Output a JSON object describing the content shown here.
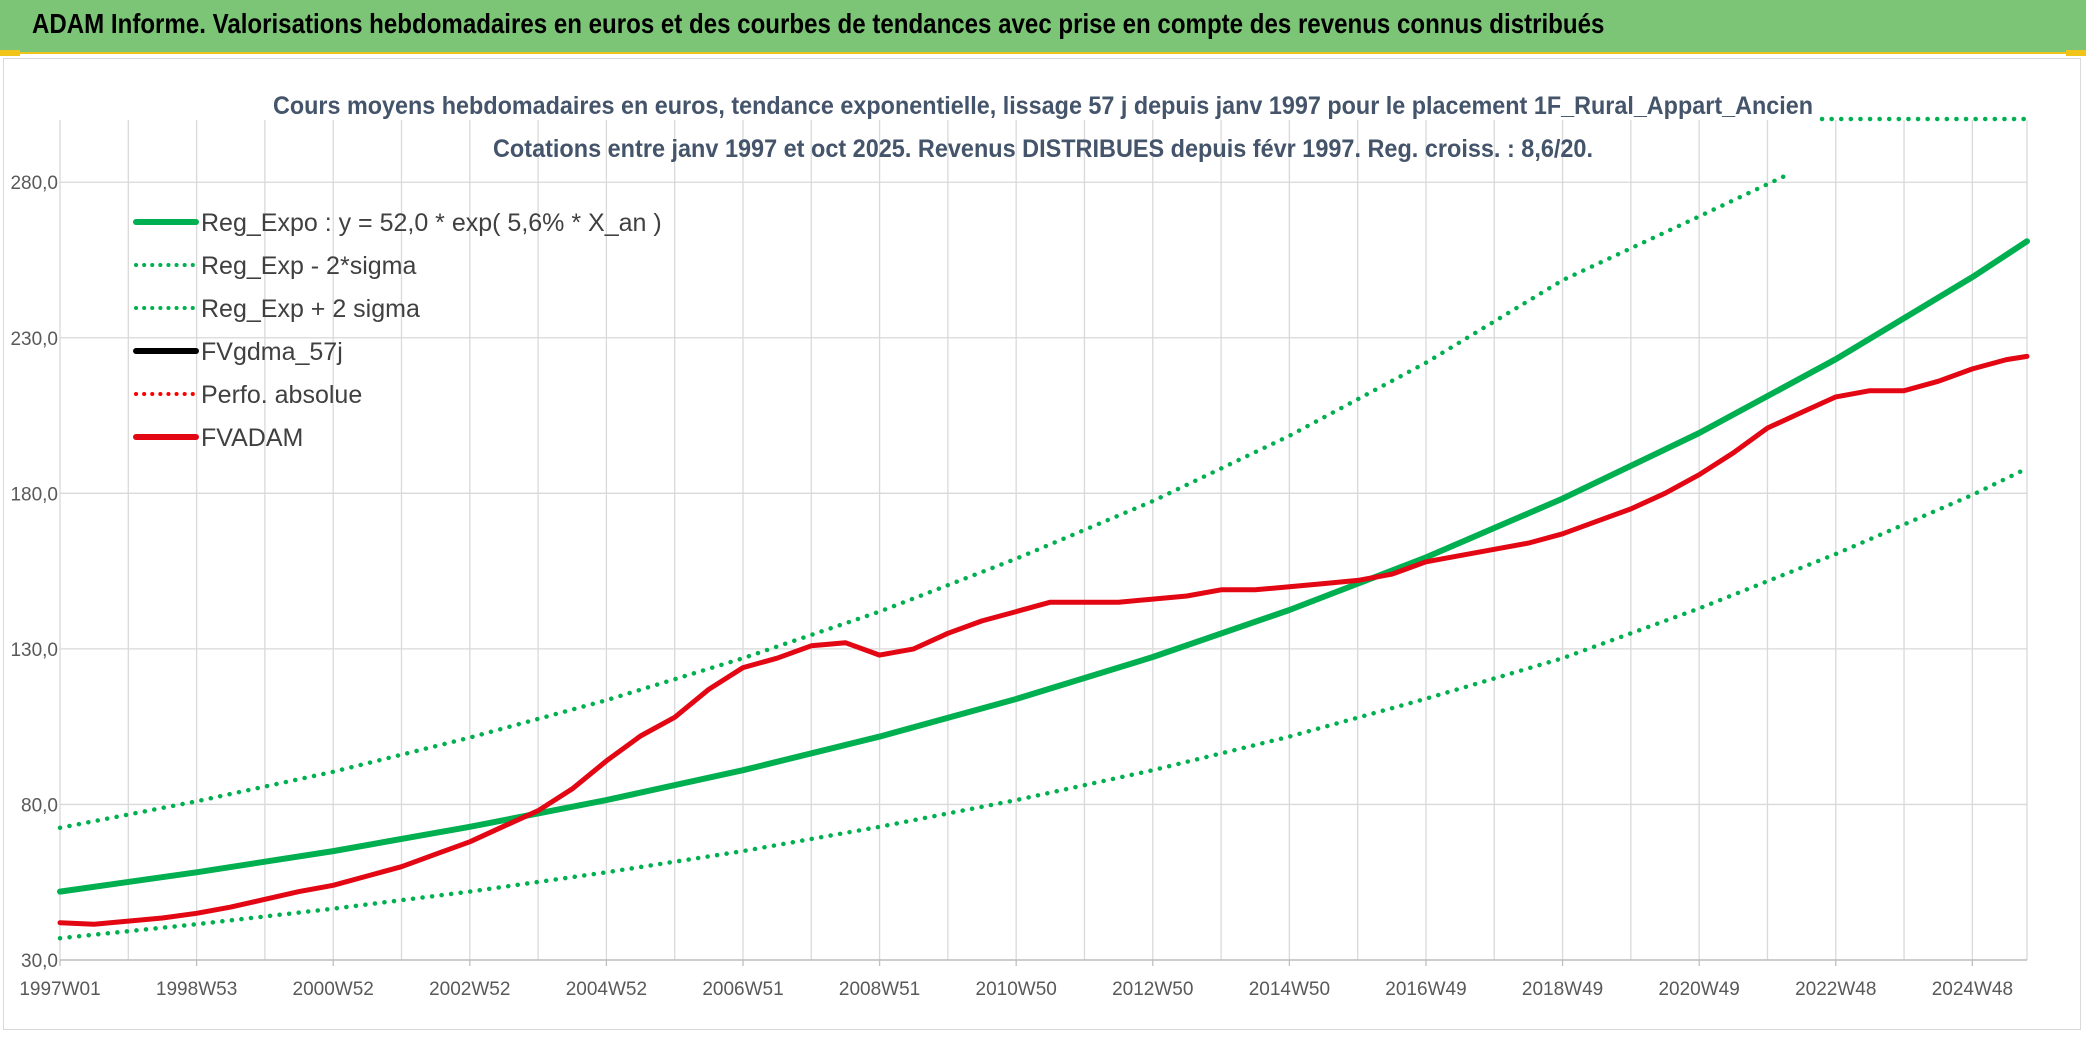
{
  "header": {
    "title": "ADAM Informe. Valorisations hebdomadaires en euros et des courbes de tendances avec prise en compte des revenus connus distribués"
  },
  "chart_data": {
    "type": "line",
    "title": "Cours moyens hebdomadaires en euros, tendance exponentielle, lissage 57 j depuis janv 1997 pour le placement 1F_Rural_Appart_Ancien",
    "subtitle": "Cotations entre janv 1997 et oct 2025. Revenus DISTRIBUES depuis févr 1997. Reg. croiss. : 8,6/20.",
    "xlabel": "",
    "ylabel": "",
    "ylim": [
      30,
      300
    ],
    "xlim": [
      1997.0,
      2025.8
    ],
    "grid": true,
    "legend_position": "top-left",
    "y_ticks": [
      "30,0",
      "80,0",
      "130,0",
      "180,0",
      "230,0",
      "280,0"
    ],
    "y_tick_values": [
      30,
      80,
      130,
      180,
      230,
      280
    ],
    "x_ticks": [
      "1997W01",
      "1998W53",
      "2000W52",
      "2002W52",
      "2004W52",
      "2006W51",
      "2008W51",
      "2010W50",
      "2012W50",
      "2014W50",
      "2016W49",
      "2018W49",
      "2020W49",
      "2022W48",
      "2024W48"
    ],
    "x_tick_years": [
      1997.0,
      1999.0,
      2001.0,
      2003.0,
      2005.0,
      2007.0,
      2009.0,
      2011.0,
      2013.0,
      2015.0,
      2017.0,
      2019.0,
      2021.0,
      2023.0,
      2025.0
    ],
    "series": [
      {
        "name": "Reg_Expo : y = 52,0 * exp( 5,6% *  X_an )",
        "color": "#00b050",
        "style": "solid",
        "x": [
          1997.0,
          1999.0,
          2001.0,
          2003.0,
          2005.0,
          2007.0,
          2009.0,
          2011.0,
          2013.0,
          2015.0,
          2017.0,
          2019.0,
          2021.0,
          2023.0,
          2025.0,
          2025.8
        ],
        "y": [
          52.0,
          58.2,
          65.0,
          72.8,
          81.4,
          91.0,
          101.8,
          113.9,
          127.4,
          142.5,
          159.4,
          178.3,
          199.4,
          223.1,
          249.5,
          261.0
        ]
      },
      {
        "name": "Reg_Exp - 2*sigma",
        "color": "#00b050",
        "style": "dotted",
        "x": [
          1997.0,
          1999.0,
          2001.0,
          2003.0,
          2005.0,
          2007.0,
          2009.0,
          2011.0,
          2013.0,
          2015.0,
          2017.0,
          2019.0,
          2021.0,
          2023.0,
          2025.0,
          2025.8
        ],
        "y": [
          37.0,
          41.5,
          46.5,
          52.0,
          58.2,
          65.0,
          72.8,
          81.4,
          91.0,
          101.8,
          114.0,
          127.0,
          143.0,
          160.5,
          179.5,
          188.0
        ]
      },
      {
        "name": "Reg_Exp + 2 sigma",
        "color": "#00b050",
        "style": "dotted",
        "x": [
          1997.0,
          1999.0,
          2001.0,
          2003.0,
          2005.0,
          2007.0,
          2009.0,
          2011.0,
          2013.0,
          2015.0,
          2017.0,
          2019.0,
          2021.0,
          2022.35
        ],
        "y": [
          72.5,
          81.0,
          90.5,
          101.5,
          113.5,
          127.0,
          142.0,
          159.0,
          177.5,
          198.5,
          222.0,
          248.5,
          269.0,
          283.0
        ]
      },
      {
        "name": "FVgdma_57j",
        "color": "#000000",
        "style": "solid",
        "x": [],
        "y": []
      },
      {
        "name": "Perfo. absolue",
        "color": "#ff0000",
        "style": "dotted",
        "x": [],
        "y": []
      },
      {
        "name": "FVADAM",
        "color": "#e30613",
        "style": "solid",
        "x": [
          1997.0,
          1997.5,
          1998.0,
          1998.5,
          1999.0,
          1999.5,
          2000.0,
          2000.5,
          2001.0,
          2001.5,
          2002.0,
          2002.5,
          2003.0,
          2003.5,
          2004.0,
          2004.5,
          2005.0,
          2005.5,
          2006.0,
          2006.5,
          2007.0,
          2007.5,
          2008.0,
          2008.5,
          2009.0,
          2009.5,
          2010.0,
          2010.5,
          2011.0,
          2011.5,
          2012.0,
          2012.5,
          2013.0,
          2013.5,
          2014.0,
          2014.5,
          2015.0,
          2015.5,
          2016.0,
          2016.5,
          2017.0,
          2017.5,
          2018.0,
          2018.5,
          2019.0,
          2019.5,
          2020.0,
          2020.5,
          2021.0,
          2021.5,
          2022.0,
          2022.5,
          2023.0,
          2023.5,
          2024.0,
          2024.5,
          2025.0,
          2025.5,
          2025.8
        ],
        "y": [
          42.0,
          41.5,
          42.5,
          43.5,
          45.0,
          47.0,
          49.5,
          52.0,
          54.0,
          57.0,
          60.0,
          64.0,
          68.0,
          73.0,
          78.0,
          85.0,
          94.0,
          102.0,
          108.0,
          117.0,
          124.0,
          127.0,
          131.0,
          132.0,
          128.0,
          130.0,
          135.0,
          139.0,
          142.0,
          145.0,
          145.0,
          145.0,
          146.0,
          147.0,
          149.0,
          149.0,
          150.0,
          151.0,
          152.0,
          154.0,
          158.0,
          160.0,
          162.0,
          164.0,
          167.0,
          171.0,
          175.0,
          180.0,
          186.0,
          193.0,
          201.0,
          206.0,
          211.0,
          213.0,
          213.0,
          216.0,
          220.0,
          223.0,
          224.0
        ]
      }
    ]
  }
}
